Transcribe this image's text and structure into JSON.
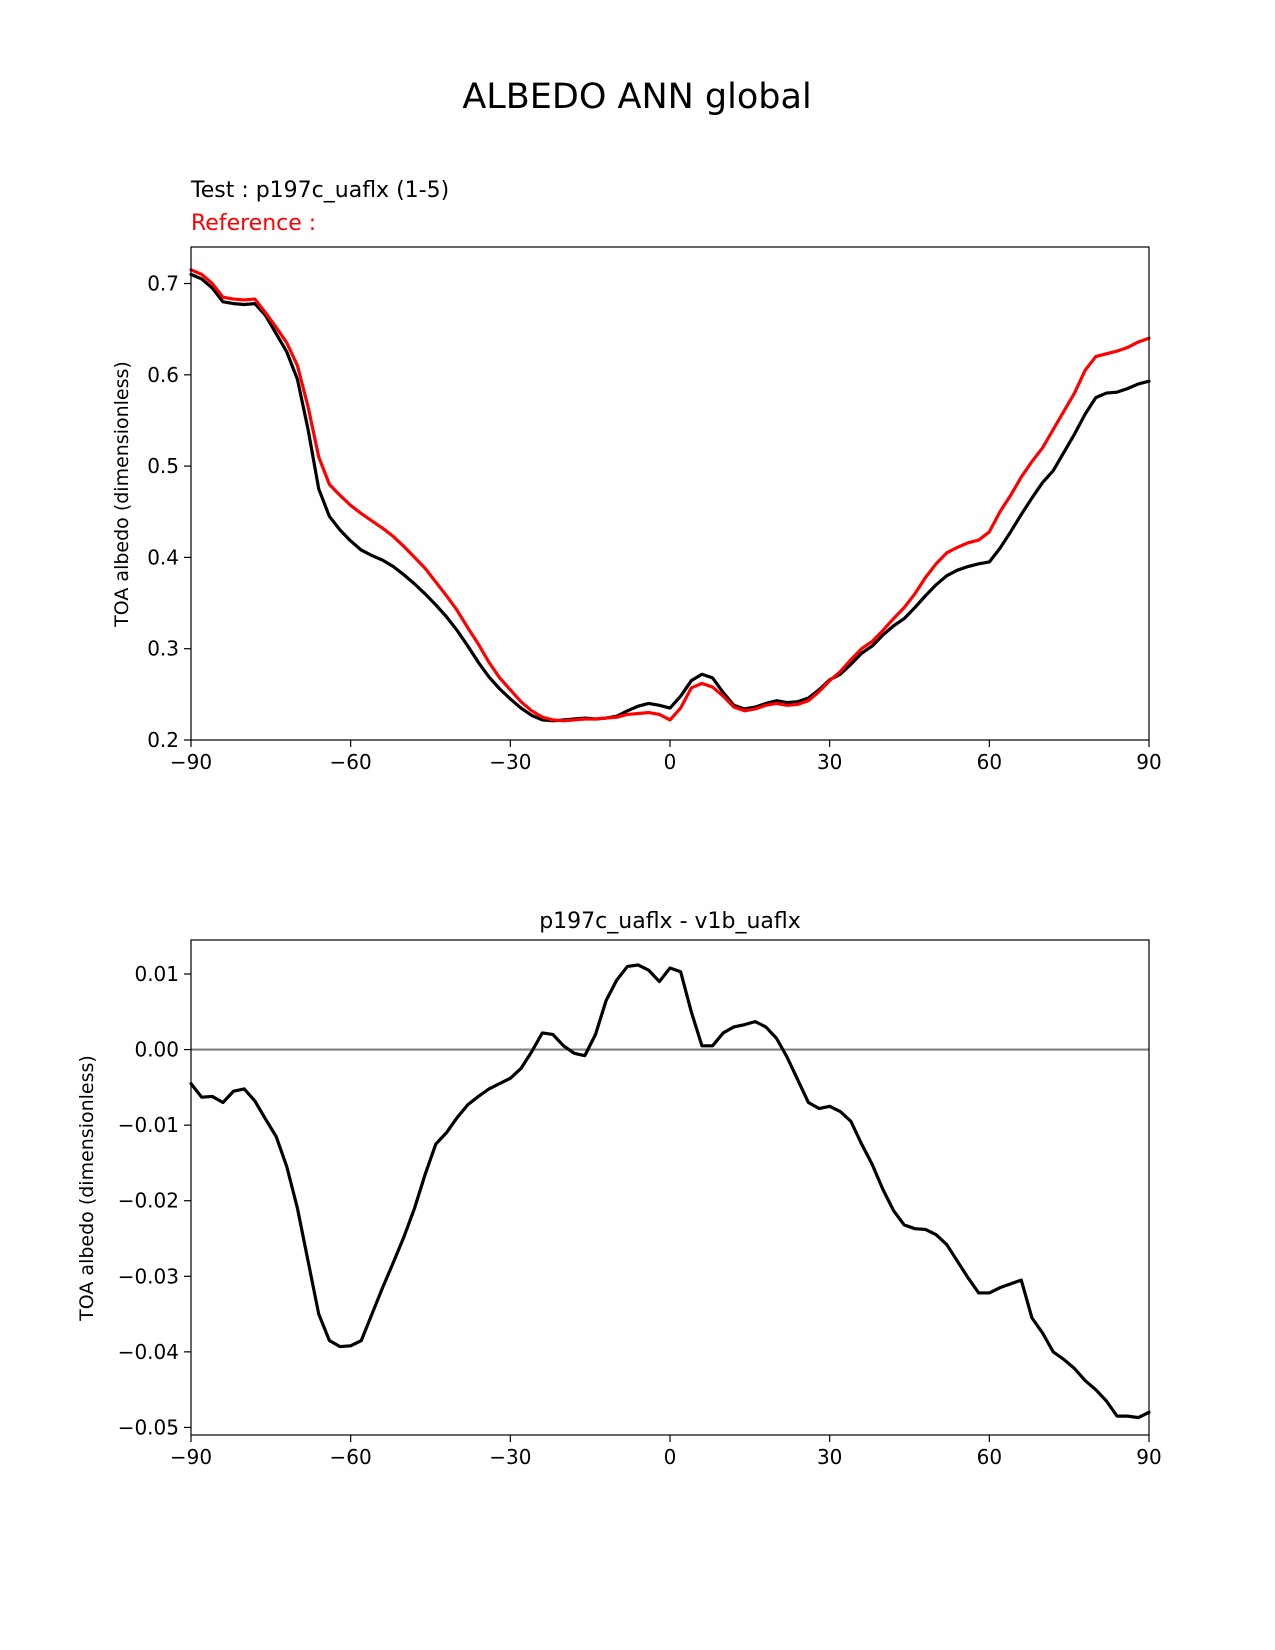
{
  "figure_title": "ALBEDO ANN global",
  "colors": {
    "test": "#000000",
    "reference": "#ff0000",
    "zero_line": "#808080"
  },
  "chart_data": [
    {
      "type": "line",
      "test_label": "Test : p197c_uaflx (1-5)",
      "reference_label": "Reference :",
      "xlabel": "",
      "ylabel": "TOA albedo (dimensionless)",
      "xlim": [
        -90,
        90
      ],
      "ylim": [
        0.2,
        0.74
      ],
      "xticks": [
        -90,
        -60,
        -30,
        0,
        30,
        60,
        90
      ],
      "xtick_labels": [
        "−90",
        "−60",
        "−30",
        "0",
        "30",
        "60",
        "90"
      ],
      "yticks": [
        0.2,
        0.3,
        0.4,
        0.5,
        0.6,
        0.7
      ],
      "ytick_labels": [
        "0.2",
        "0.3",
        "0.4",
        "0.5",
        "0.6",
        "0.7"
      ],
      "grid": false,
      "series": [
        {
          "role": "test",
          "x": [
            -90,
            -88,
            -86,
            -84,
            -82,
            -80,
            -78,
            -76,
            -74,
            -72,
            -70,
            -68,
            -66,
            -64,
            -62,
            -60,
            -58,
            -56,
            -54,
            -52,
            -50,
            -48,
            -46,
            -44,
            -42,
            -40,
            -38,
            -36,
            -34,
            -32,
            -30,
            -28,
            -26,
            -24,
            -22,
            -20,
            -18,
            -16,
            -14,
            -12,
            -10,
            -8,
            -6,
            -4,
            -2,
            0,
            2,
            4,
            6,
            8,
            10,
            12,
            14,
            16,
            18,
            20,
            22,
            24,
            26,
            28,
            30,
            32,
            34,
            36,
            38,
            40,
            42,
            44,
            46,
            48,
            50,
            52,
            54,
            56,
            58,
            60,
            62,
            64,
            66,
            68,
            70,
            72,
            74,
            76,
            78,
            80,
            82,
            84,
            86,
            88,
            90
          ],
          "y": [
            0.71,
            0.705,
            0.695,
            0.68,
            0.678,
            0.677,
            0.678,
            0.665,
            0.645,
            0.625,
            0.595,
            0.54,
            0.475,
            0.445,
            0.43,
            0.418,
            0.408,
            0.402,
            0.397,
            0.39,
            0.381,
            0.371,
            0.36,
            0.348,
            0.335,
            0.32,
            0.303,
            0.285,
            0.269,
            0.256,
            0.245,
            0.235,
            0.227,
            0.222,
            0.221,
            0.222,
            0.223,
            0.224,
            0.223,
            0.224,
            0.226,
            0.232,
            0.237,
            0.24,
            0.238,
            0.235,
            0.248,
            0.265,
            0.272,
            0.268,
            0.252,
            0.238,
            0.234,
            0.236,
            0.24,
            0.243,
            0.241,
            0.242,
            0.246,
            0.255,
            0.266,
            0.272,
            0.283,
            0.295,
            0.303,
            0.315,
            0.325,
            0.333,
            0.345,
            0.358,
            0.37,
            0.38,
            0.386,
            0.39,
            0.393,
            0.395,
            0.41,
            0.428,
            0.447,
            0.465,
            0.482,
            0.495,
            0.515,
            0.535,
            0.557,
            0.575,
            0.58,
            0.581,
            0.585,
            0.59,
            0.593
          ]
        },
        {
          "role": "reference",
          "x": [
            -90,
            -88,
            -86,
            -84,
            -82,
            -80,
            -78,
            -76,
            -74,
            -72,
            -70,
            -68,
            -66,
            -64,
            -62,
            -60,
            -58,
            -56,
            -54,
            -52,
            -50,
            -48,
            -46,
            -44,
            -42,
            -40,
            -38,
            -36,
            -34,
            -32,
            -30,
            -28,
            -26,
            -24,
            -22,
            -20,
            -18,
            -16,
            -14,
            -12,
            -10,
            -8,
            -6,
            -4,
            -2,
            0,
            2,
            4,
            6,
            8,
            10,
            12,
            14,
            16,
            18,
            20,
            22,
            24,
            26,
            28,
            30,
            32,
            34,
            36,
            38,
            40,
            42,
            44,
            46,
            48,
            50,
            52,
            54,
            56,
            58,
            60,
            62,
            64,
            66,
            68,
            70,
            72,
            74,
            76,
            78,
            80,
            82,
            84,
            86,
            88,
            90
          ],
          "y": [
            0.715,
            0.71,
            0.7,
            0.685,
            0.683,
            0.682,
            0.683,
            0.668,
            0.652,
            0.635,
            0.61,
            0.565,
            0.51,
            0.48,
            0.468,
            0.457,
            0.448,
            0.44,
            0.432,
            0.423,
            0.412,
            0.4,
            0.388,
            0.373,
            0.358,
            0.342,
            0.323,
            0.305,
            0.285,
            0.268,
            0.255,
            0.242,
            0.232,
            0.225,
            0.222,
            0.221,
            0.222,
            0.223,
            0.223,
            0.224,
            0.225,
            0.228,
            0.229,
            0.23,
            0.228,
            0.222,
            0.235,
            0.257,
            0.262,
            0.258,
            0.248,
            0.236,
            0.232,
            0.234,
            0.238,
            0.24,
            0.238,
            0.239,
            0.243,
            0.253,
            0.265,
            0.275,
            0.288,
            0.3,
            0.308,
            0.32,
            0.333,
            0.345,
            0.36,
            0.378,
            0.393,
            0.405,
            0.411,
            0.416,
            0.419,
            0.428,
            0.45,
            0.468,
            0.488,
            0.505,
            0.52,
            0.54,
            0.56,
            0.58,
            0.605,
            0.62,
            0.623,
            0.626,
            0.63,
            0.636,
            0.64
          ]
        }
      ]
    },
    {
      "type": "line",
      "title": "p197c_uaflx - v1b_uaflx",
      "xlabel": "",
      "ylabel": "TOA albedo (dimensionless)",
      "xlim": [
        -90,
        90
      ],
      "ylim": [
        -0.051,
        0.0145
      ],
      "xticks": [
        -90,
        -60,
        -30,
        0,
        30,
        60,
        90
      ],
      "xtick_labels": [
        "−90",
        "−60",
        "−30",
        "0",
        "30",
        "60",
        "90"
      ],
      "yticks": [
        -0.05,
        -0.04,
        -0.03,
        -0.02,
        -0.01,
        0.0,
        0.01
      ],
      "ytick_labels": [
        "−0.05",
        "−0.04",
        "−0.03",
        "−0.02",
        "−0.01",
        "0.00",
        "0.01"
      ],
      "zero_line": 0,
      "grid": false,
      "series": [
        {
          "role": "difference",
          "x": [
            -90,
            -88,
            -86,
            -84,
            -82,
            -80,
            -78,
            -76,
            -74,
            -72,
            -70,
            -68,
            -66,
            -64,
            -62,
            -60,
            -58,
            -56,
            -54,
            -52,
            -50,
            -48,
            -46,
            -44,
            -42,
            -40,
            -38,
            -36,
            -34,
            -32,
            -30,
            -28,
            -26,
            -24,
            -22,
            -20,
            -18,
            -16,
            -14,
            -12,
            -10,
            -8,
            -6,
            -4,
            -2,
            0,
            2,
            4,
            6,
            8,
            10,
            12,
            14,
            16,
            18,
            20,
            22,
            24,
            26,
            28,
            30,
            32,
            34,
            36,
            38,
            40,
            42,
            44,
            46,
            48,
            50,
            52,
            54,
            56,
            58,
            60,
            62,
            64,
            66,
            68,
            70,
            72,
            74,
            76,
            78,
            80,
            82,
            84,
            86,
            88,
            90
          ],
          "y": [
            -0.0045,
            -0.0063,
            -0.0062,
            -0.007,
            -0.0055,
            -0.0052,
            -0.0068,
            -0.0092,
            -0.0115,
            -0.0155,
            -0.021,
            -0.028,
            -0.035,
            -0.0385,
            -0.0393,
            -0.0392,
            -0.0385,
            -0.035,
            -0.0315,
            -0.0282,
            -0.0248,
            -0.021,
            -0.0165,
            -0.0125,
            -0.011,
            -0.009,
            -0.0073,
            -0.0062,
            -0.0052,
            -0.0045,
            -0.0038,
            -0.0025,
            -0.0003,
            0.0022,
            0.002,
            0.0005,
            -0.0005,
            -0.0008,
            0.002,
            0.0065,
            0.0092,
            0.011,
            0.0112,
            0.0105,
            0.009,
            0.0108,
            0.0103,
            0.005,
            0.0005,
            0.0005,
            0.0022,
            0.003,
            0.0033,
            0.0037,
            0.003,
            0.0015,
            -0.001,
            -0.004,
            -0.007,
            -0.0078,
            -0.0075,
            -0.0082,
            -0.0095,
            -0.0125,
            -0.0152,
            -0.0185,
            -0.0213,
            -0.0232,
            -0.0237,
            -0.0238,
            -0.0245,
            -0.0258,
            -0.028,
            -0.0302,
            -0.0322,
            -0.0322,
            -0.0315,
            -0.031,
            -0.0305,
            -0.0355,
            -0.0375,
            -0.04,
            -0.041,
            -0.0422,
            -0.0438,
            -0.045,
            -0.0465,
            -0.0485,
            -0.0485,
            -0.0487,
            -0.048
          ]
        }
      ]
    }
  ]
}
